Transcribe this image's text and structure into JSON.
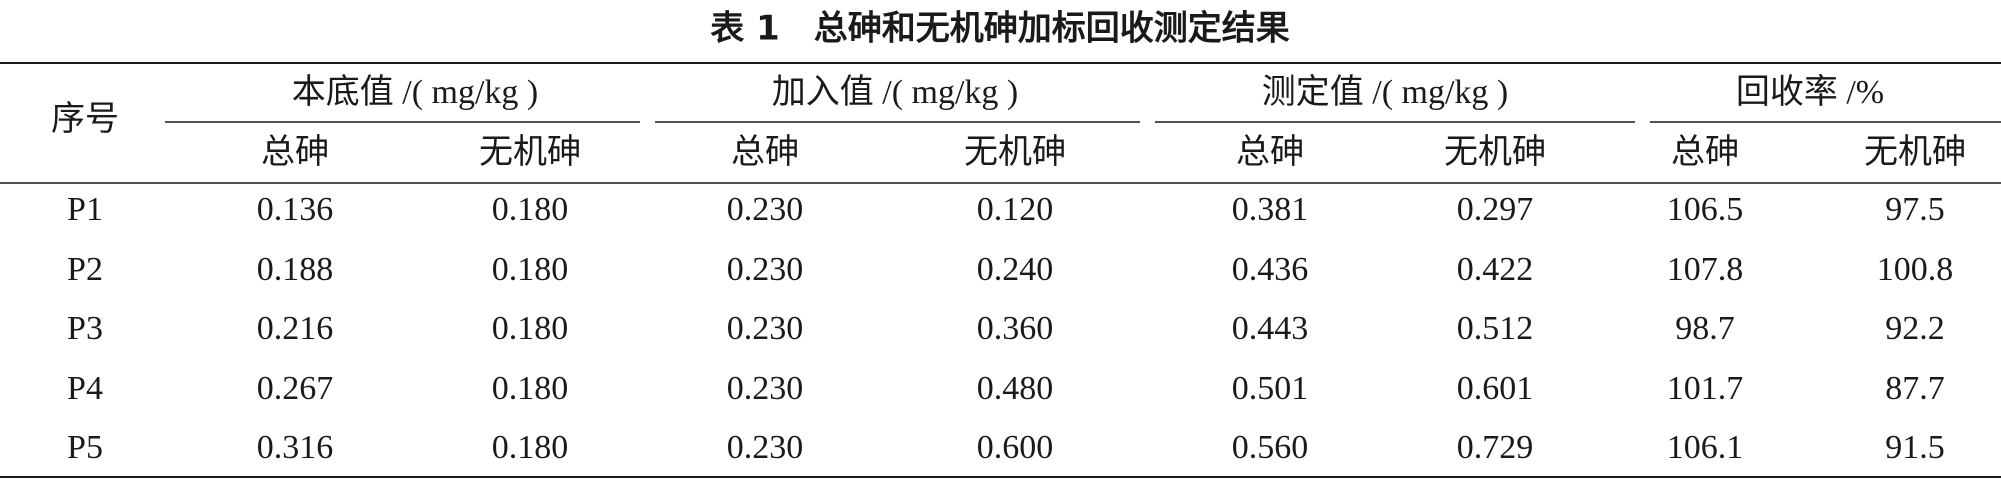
{
  "title": "表 1　总砷和无机砷加标回收测定结果",
  "table": {
    "corner": "序号",
    "groups": [
      "本底值 /( mg/kg )",
      "加入值 /( mg/kg )",
      "测定值 /( mg/kg )",
      "回收率 /%"
    ],
    "subheaders": [
      "总砷",
      "无机砷",
      "总砷",
      "无机砷",
      "总砷",
      "无机砷",
      "总砷",
      "无机砷"
    ],
    "rows": [
      [
        "P1",
        "0.136",
        "0.180",
        "0.230",
        "0.120",
        "0.381",
        "0.297",
        "106.5",
        "97.5"
      ],
      [
        "P2",
        "0.188",
        "0.180",
        "0.230",
        "0.240",
        "0.436",
        "0.422",
        "107.8",
        "100.8"
      ],
      [
        "P3",
        "0.216",
        "0.180",
        "0.230",
        "0.360",
        "0.443",
        "0.512",
        "98.7",
        "92.2"
      ],
      [
        "P4",
        "0.267",
        "0.180",
        "0.230",
        "0.480",
        "0.501",
        "0.601",
        "101.7",
        "87.7"
      ],
      [
        "P5",
        "0.316",
        "0.180",
        "0.230",
        "0.600",
        "0.560",
        "0.729",
        "106.1",
        "91.5"
      ]
    ]
  }
}
